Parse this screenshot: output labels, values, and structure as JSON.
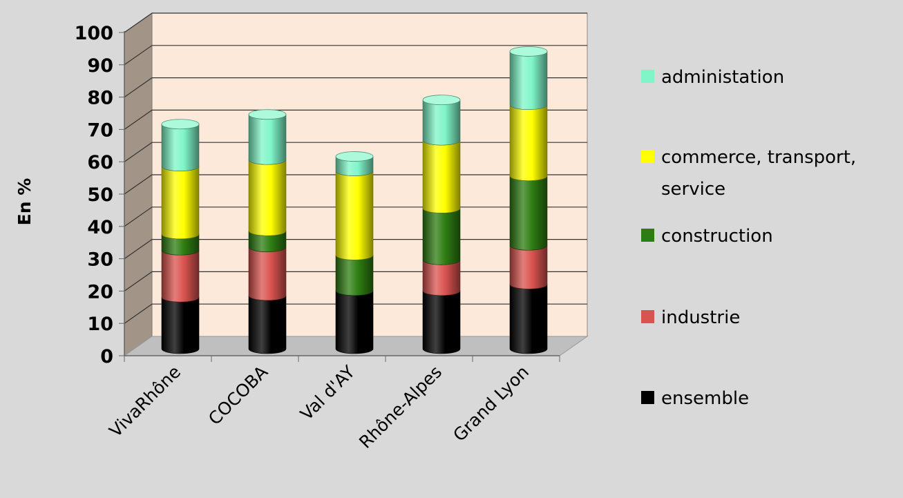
{
  "chart_data": {
    "type": "bar",
    "stacked": true,
    "style": "3d-cylinder",
    "title": "",
    "xlabel": "",
    "ylabel": "En %",
    "ylim": [
      0,
      100
    ],
    "yticks": [
      0,
      10,
      20,
      30,
      40,
      50,
      60,
      70,
      80,
      90,
      100
    ],
    "grid": true,
    "legend_position": "right",
    "categories": [
      "VivaRhône",
      "COCOBA",
      "Val d'AY",
      "Rhône-Alpes",
      "Grand Lyon"
    ],
    "series": [
      {
        "name": "ensemble",
        "color": "#000000",
        "values": [
          16,
          16.5,
          18,
          18,
          20
        ]
      },
      {
        "name": "industrie",
        "color": "#d9534f",
        "values": [
          14.5,
          15,
          0,
          9.5,
          12
        ]
      },
      {
        "name": "construction",
        "color": "#2e7d12",
        "values": [
          5,
          5,
          11,
          16,
          21.5
        ]
      },
      {
        "name": "commerce, transport, service",
        "color": "#ffff00",
        "values": [
          21,
          22,
          26,
          21,
          22
        ]
      },
      {
        "name": "administation",
        "color": "#7ff5c8",
        "values": [
          13,
          14,
          4.5,
          12.5,
          16.5
        ]
      }
    ],
    "legend_entries": [
      {
        "lines": [
          "administation"
        ],
        "series": 4
      },
      {
        "lines": [
          "commerce, transport,",
          "service"
        ],
        "series": 3
      },
      {
        "lines": [
          "construction"
        ],
        "series": 2
      },
      {
        "lines": [
          "industrie"
        ],
        "series": 1
      },
      {
        "lines": [
          "ensemble"
        ],
        "series": 0
      }
    ],
    "colors": {
      "background": "#d9d9d9",
      "plot_area": "#fde9d9",
      "side_wall": "#a39488",
      "floor": "#bfbfbf",
      "gridline": "#333333",
      "text": "#000000"
    }
  }
}
